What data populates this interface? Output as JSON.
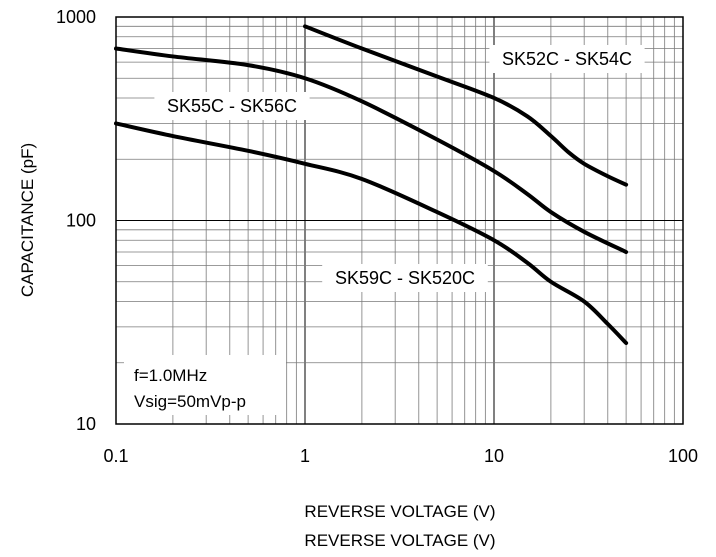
{
  "chart_data": {
    "type": "line",
    "title": "",
    "xlabel": "REVERSE VOLTAGE (V)",
    "xlabel_repeat": "REVERSE VOLTAGE (V)",
    "ylabel": "CAPACITANCE (pF)",
    "x_scale": "log",
    "y_scale": "log",
    "xlim": [
      0.1,
      100
    ],
    "ylim": [
      10,
      1000
    ],
    "grid": true,
    "x_ticks": [
      "0.1",
      "1",
      "10",
      "100"
    ],
    "y_ticks": [
      "10",
      "100",
      "1000"
    ],
    "annotations": [
      "f=1.0MHz",
      "Vsig=50mVp-p"
    ],
    "series": [
      {
        "name": "SK52C - SK54C",
        "color": "#000000",
        "x": [
          1,
          2,
          5,
          10,
          15,
          20,
          25,
          30,
          40,
          50
        ],
        "y": [
          900,
          700,
          510,
          400,
          325,
          260,
          215,
          190,
          165,
          150
        ]
      },
      {
        "name": "SK55C - SK56C",
        "color": "#000000",
        "x": [
          0.1,
          0.2,
          0.5,
          1,
          2,
          5,
          10,
          15,
          20,
          30,
          50
        ],
        "y": [
          700,
          640,
          580,
          500,
          385,
          250,
          175,
          135,
          110,
          88,
          70
        ]
      },
      {
        "name": "SK59C - SK520C",
        "color": "#000000",
        "x": [
          0.1,
          0.2,
          0.5,
          1,
          2,
          5,
          10,
          15,
          20,
          30,
          40,
          50
        ],
        "y": [
          300,
          260,
          220,
          190,
          160,
          110,
          80,
          62,
          50,
          40,
          31,
          25
        ]
      }
    ]
  }
}
